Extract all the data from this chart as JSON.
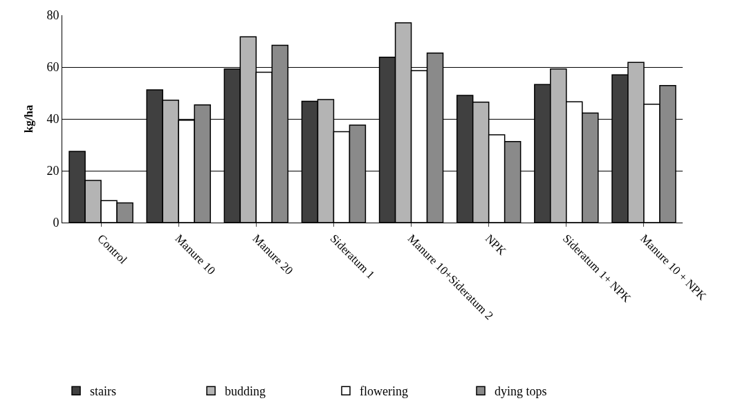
{
  "chart_data": {
    "type": "bar",
    "ylabel": "kg/ha",
    "categories": [
      "Control",
      "Manure 10",
      "Manure 20",
      "Sideratum 1",
      "Manure 10+Sideratum 2",
      "NPK",
      "Sideratum 1+ NPK",
      "Manure 10 + NPK"
    ],
    "series": [
      {
        "name": "stairs",
        "color": "#404040",
        "values": [
          27.5,
          51.2,
          59.3,
          46.8,
          63.8,
          49.1,
          53.3,
          57.0
        ]
      },
      {
        "name": "budding",
        "color": "#b4b4b4",
        "values": [
          16.3,
          47.2,
          71.7,
          47.5,
          77.1,
          46.5,
          59.3,
          61.8
        ]
      },
      {
        "name": "flowering",
        "color": "#ffffff",
        "values": [
          8.5,
          39.5,
          58.0,
          35.1,
          58.6,
          33.9,
          46.6,
          45.7
        ]
      },
      {
        "name": "dying tops",
        "color": "#8a8a8a",
        "values": [
          7.6,
          45.4,
          68.4,
          37.6,
          65.4,
          31.3,
          42.3,
          52.9
        ]
      }
    ],
    "ylim": [
      0,
      80
    ],
    "yticks": [
      0,
      20,
      40,
      60,
      80
    ],
    "grid": "y",
    "legend": "bottom"
  }
}
